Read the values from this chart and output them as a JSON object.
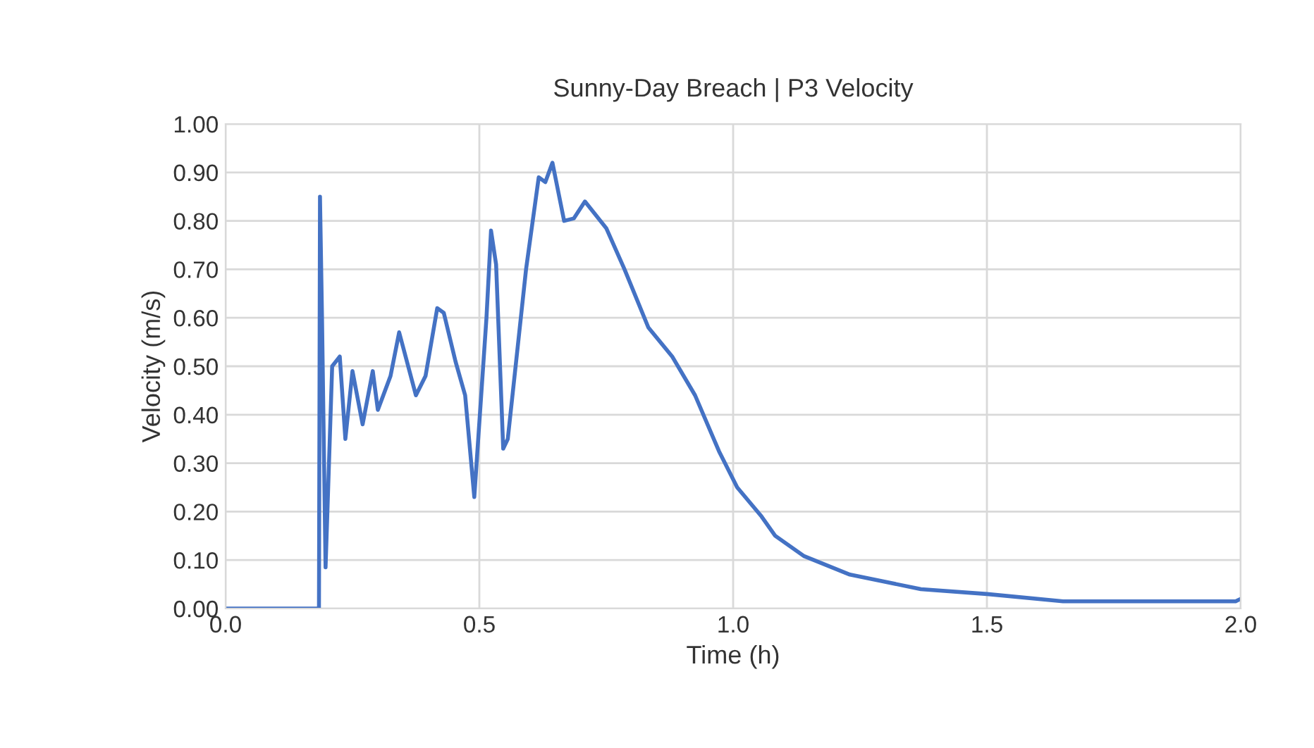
{
  "chart_data": {
    "type": "line",
    "title": "Sunny-Day Breach | P3 Velocity",
    "xlabel": "Time (h)",
    "ylabel": "Velocity (m/s)",
    "xlim": [
      0.0,
      2.0
    ],
    "xticks": [
      {
        "value": 0.0,
        "label": "0.0"
      },
      {
        "value": 0.5,
        "label": "0.5"
      },
      {
        "value": 1.0,
        "label": "1.0"
      },
      {
        "value": 1.5,
        "label": "1.5"
      },
      {
        "value": 2.0,
        "label": "2.0"
      }
    ],
    "ylim": [
      0.0,
      1.0
    ],
    "yticks": [
      {
        "value": 0.0,
        "label": "0.00"
      },
      {
        "value": 0.1,
        "label": "0.10"
      },
      {
        "value": 0.2,
        "label": "0.20"
      },
      {
        "value": 0.3,
        "label": "0.30"
      },
      {
        "value": 0.4,
        "label": "0.40"
      },
      {
        "value": 0.5,
        "label": "0.50"
      },
      {
        "value": 0.6,
        "label": "0.60"
      },
      {
        "value": 0.7,
        "label": "0.70"
      },
      {
        "value": 0.8,
        "label": "0.80"
      },
      {
        "value": 0.9,
        "label": "0.90"
      },
      {
        "value": 1.0,
        "label": "1.00"
      }
    ],
    "grid": true,
    "marker": "none",
    "line_style": "solid",
    "series": [
      {
        "color": "#4472c4",
        "x": [
          0.0,
          0.184,
          0.186,
          0.19,
          0.197,
          0.21,
          0.225,
          0.236,
          0.25,
          0.27,
          0.29,
          0.3,
          0.325,
          0.342,
          0.375,
          0.394,
          0.417,
          0.43,
          0.453,
          0.472,
          0.49,
          0.514,
          0.523,
          0.533,
          0.547,
          0.556,
          0.592,
          0.617,
          0.63,
          0.644,
          0.667,
          0.686,
          0.708,
          0.75,
          0.786,
          0.833,
          0.88,
          0.925,
          0.972,
          1.008,
          1.056,
          1.083,
          1.14,
          1.23,
          1.37,
          1.5,
          1.65,
          1.8,
          1.99,
          2.0
        ],
        "values": [
          0.0,
          0.0,
          0.85,
          0.6,
          0.085,
          0.5,
          0.52,
          0.35,
          0.49,
          0.38,
          0.49,
          0.41,
          0.48,
          0.57,
          0.44,
          0.48,
          0.62,
          0.61,
          0.51,
          0.44,
          0.23,
          0.6,
          0.78,
          0.71,
          0.33,
          0.35,
          0.7,
          0.89,
          0.88,
          0.92,
          0.8,
          0.805,
          0.84,
          0.785,
          0.7,
          0.58,
          0.52,
          0.44,
          0.325,
          0.25,
          0.19,
          0.15,
          0.108,
          0.07,
          0.04,
          0.03,
          0.015,
          0.015,
          0.015,
          0.02
        ]
      }
    ]
  }
}
